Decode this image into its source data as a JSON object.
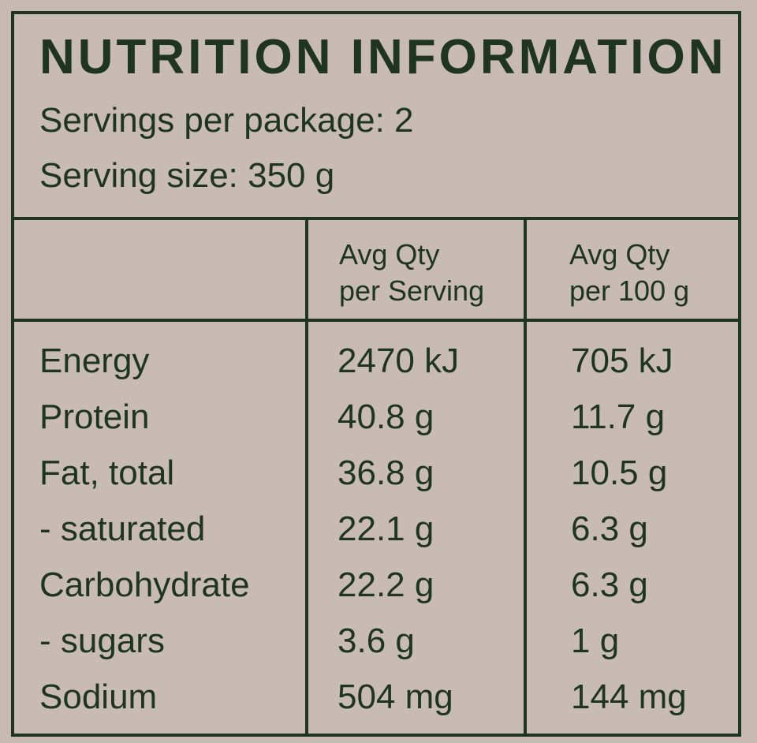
{
  "panel": {
    "title": "NUTRITION INFORMATION",
    "servings_per_package": "Servings per package: 2",
    "serving_size": "Serving size: 350 g"
  },
  "columns": {
    "per_serving": [
      "Avg Qty",
      "per Serving"
    ],
    "per_100g": [
      "Avg Qty",
      "per 100 g"
    ]
  },
  "rows": [
    {
      "label": "Energy",
      "per_serving": "2470 kJ",
      "per_100g": "705 kJ"
    },
    {
      "label": "Protein",
      "per_serving": "40.8 g",
      "per_100g": "11.7 g"
    },
    {
      "label": "Fat, total",
      "per_serving": "36.8 g",
      "per_100g": "10.5 g"
    },
    {
      "label": "- saturated",
      "per_serving": "22.1 g",
      "per_100g": "6.3 g"
    },
    {
      "label": "Carbohydrate",
      "per_serving": "22.2 g",
      "per_100g": "6.3 g"
    },
    {
      "label": "- sugars",
      "per_serving": "3.6 g",
      "per_100g": "1 g"
    },
    {
      "label": "Sodium",
      "per_serving": "504 mg",
      "per_100g": "144 mg"
    }
  ],
  "colors": {
    "ink": "#1f3522",
    "background": "#c8bab5"
  }
}
